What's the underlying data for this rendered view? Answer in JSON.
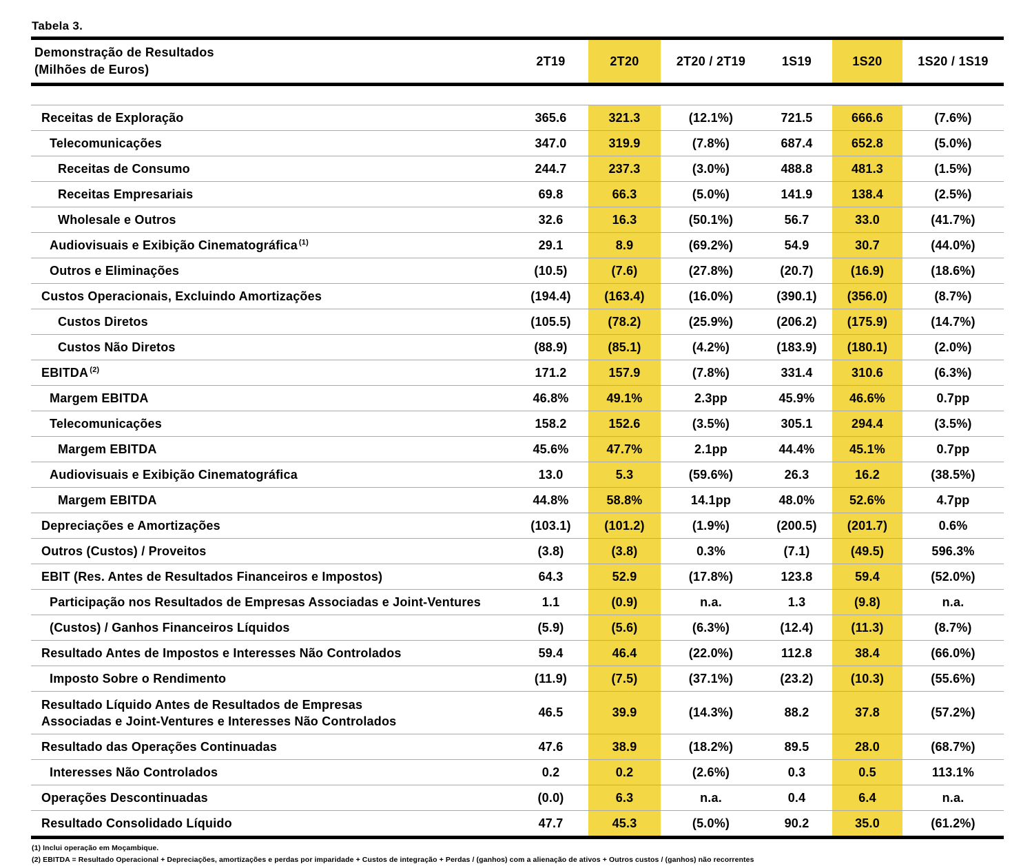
{
  "title": "Tabela 3.",
  "colors": {
    "highlight": "#F4D744",
    "rule_thin": "#a9a9a9",
    "rule_thick": "#000000"
  },
  "table": {
    "header": {
      "label_line1": "Demonstração de Resultados",
      "label_line2": "(Milhões de Euros)",
      "columns": [
        {
          "label": "2T19",
          "highlight": false
        },
        {
          "label": "2T20",
          "highlight": true
        },
        {
          "label": "2T20 / 2T19",
          "highlight": false
        },
        {
          "label": "1S19",
          "highlight": false
        },
        {
          "label": "1S20",
          "highlight": true
        },
        {
          "label": "1S20 / 1S19",
          "highlight": false
        }
      ]
    },
    "highlight_column_indexes": [
      1,
      4
    ],
    "rows": [
      {
        "label": "Receitas de Exploração",
        "indent": 1,
        "values": [
          "365.6",
          "321.3",
          "(12.1%)",
          "721.5",
          "666.6",
          "(7.6%)"
        ]
      },
      {
        "label": "Telecomunicações",
        "indent": 2,
        "values": [
          "347.0",
          "319.9",
          "(7.8%)",
          "687.4",
          "652.8",
          "(5.0%)"
        ]
      },
      {
        "label": "Receitas de Consumo",
        "indent": 3,
        "values": [
          "244.7",
          "237.3",
          "(3.0%)",
          "488.8",
          "481.3",
          "(1.5%)"
        ]
      },
      {
        "label": "Receitas Empresariais",
        "indent": 3,
        "values": [
          "69.8",
          "66.3",
          "(5.0%)",
          "141.9",
          "138.4",
          "(2.5%)"
        ]
      },
      {
        "label": "Wholesale e Outros",
        "indent": 3,
        "values": [
          "32.6",
          "16.3",
          "(50.1%)",
          "56.7",
          "33.0",
          "(41.7%)"
        ]
      },
      {
        "label": "Audiovisuais e Exibição Cinematográfica",
        "sup": "(1)",
        "indent": 2,
        "values": [
          "29.1",
          "8.9",
          "(69.2%)",
          "54.9",
          "30.7",
          "(44.0%)"
        ]
      },
      {
        "label": "Outros e Eliminações",
        "indent": 2,
        "values": [
          "(10.5)",
          "(7.6)",
          "(27.8%)",
          "(20.7)",
          "(16.9)",
          "(18.6%)"
        ]
      },
      {
        "label": "Custos Operacionais, Excluindo Amortizações",
        "indent": 1,
        "values": [
          "(194.4)",
          "(163.4)",
          "(16.0%)",
          "(390.1)",
          "(356.0)",
          "(8.7%)"
        ]
      },
      {
        "label": "Custos Diretos",
        "indent": 3,
        "values": [
          "(105.5)",
          "(78.2)",
          "(25.9%)",
          "(206.2)",
          "(175.9)",
          "(14.7%)"
        ]
      },
      {
        "label": "Custos Não Diretos",
        "indent": 3,
        "values": [
          "(88.9)",
          "(85.1)",
          "(4.2%)",
          "(183.9)",
          "(180.1)",
          "(2.0%)"
        ]
      },
      {
        "label": "EBITDA",
        "sup": "(2)",
        "indent": 1,
        "values": [
          "171.2",
          "157.9",
          "(7.8%)",
          "331.4",
          "310.6",
          "(6.3%)"
        ]
      },
      {
        "label": "Margem EBITDA",
        "indent": 2,
        "values": [
          "46.8%",
          "49.1%",
          "2.3pp",
          "45.9%",
          "46.6%",
          "0.7pp"
        ]
      },
      {
        "label": "Telecomunicações",
        "indent": 2,
        "values": [
          "158.2",
          "152.6",
          "(3.5%)",
          "305.1",
          "294.4",
          "(3.5%)"
        ]
      },
      {
        "label": "Margem EBITDA",
        "indent": 3,
        "values": [
          "45.6%",
          "47.7%",
          "2.1pp",
          "44.4%",
          "45.1%",
          "0.7pp"
        ]
      },
      {
        "label": "Audiovisuais e Exibição Cinematográfica",
        "indent": 2,
        "values": [
          "13.0",
          "5.3",
          "(59.6%)",
          "26.3",
          "16.2",
          "(38.5%)"
        ]
      },
      {
        "label": "Margem EBITDA",
        "indent": 3,
        "values": [
          "44.8%",
          "58.8%",
          "14.1pp",
          "48.0%",
          "52.6%",
          "4.7pp"
        ]
      },
      {
        "label": "Depreciações e Amortizações",
        "indent": 1,
        "values": [
          "(103.1)",
          "(101.2)",
          "(1.9%)",
          "(200.5)",
          "(201.7)",
          "0.6%"
        ]
      },
      {
        "label": "Outros (Custos) / Proveitos",
        "indent": 1,
        "values": [
          "(3.8)",
          "(3.8)",
          "0.3%",
          "(7.1)",
          "(49.5)",
          "596.3%"
        ]
      },
      {
        "label": "EBIT (Res. Antes de Resultados Financeiros e Impostos)",
        "indent": 1,
        "values": [
          "64.3",
          "52.9",
          "(17.8%)",
          "123.8",
          "59.4",
          "(52.0%)"
        ]
      },
      {
        "label": "Participação nos Resultados de Empresas Associadas e Joint-Ventures",
        "indent": 2,
        "values": [
          "1.1",
          "(0.9)",
          "n.a.",
          "1.3",
          "(9.8)",
          "n.a."
        ]
      },
      {
        "label": "(Custos) / Ganhos Financeiros Líquidos",
        "indent": 2,
        "values": [
          "(5.9)",
          "(5.6)",
          "(6.3%)",
          "(12.4)",
          "(11.3)",
          "(8.7%)"
        ]
      },
      {
        "label": "Resultado Antes de Impostos e Interesses Não Controlados",
        "indent": 1,
        "values": [
          "59.4",
          "46.4",
          "(22.0%)",
          "112.8",
          "38.4",
          "(66.0%)"
        ]
      },
      {
        "label": "Imposto Sobre o Rendimento",
        "indent": 2,
        "values": [
          "(11.9)",
          "(7.5)",
          "(37.1%)",
          "(23.2)",
          "(10.3)",
          "(55.6%)"
        ]
      },
      {
        "label": "Resultado Líquido Antes de Resultados de Empresas",
        "label2": "Associadas e Joint-Ventures e Interesses Não Controlados",
        "tall": true,
        "indent": 1,
        "values": [
          "46.5",
          "39.9",
          "(14.3%)",
          "88.2",
          "37.8",
          "(57.2%)"
        ]
      },
      {
        "label": "Resultado das Operações Continuadas",
        "indent": 1,
        "values": [
          "47.6",
          "38.9",
          "(18.2%)",
          "89.5",
          "28.0",
          "(68.7%)"
        ]
      },
      {
        "label": "Interesses Não Controlados",
        "indent": 2,
        "values": [
          "0.2",
          "0.2",
          "(2.6%)",
          "0.3",
          "0.5",
          "113.1%"
        ]
      },
      {
        "label": "Operações Descontinuadas",
        "indent": 1,
        "values": [
          "(0.0)",
          "6.3",
          "n.a.",
          "0.4",
          "6.4",
          "n.a."
        ]
      },
      {
        "label": "Resultado Consolidado Líquido",
        "indent": 1,
        "values": [
          "47.7",
          "45.3",
          "(5.0%)",
          "90.2",
          "35.0",
          "(61.2%)"
        ]
      }
    ]
  },
  "footnotes": [
    "(1) Inclui operação em Moçambique.",
    "(2) EBITDA = Resultado Operacional + Depreciações, amortizações e perdas por imparidade + Custos de integração + Perdas / (ganhos) com a alienação de ativos + Outros custos / (ganhos) não recorrentes"
  ]
}
